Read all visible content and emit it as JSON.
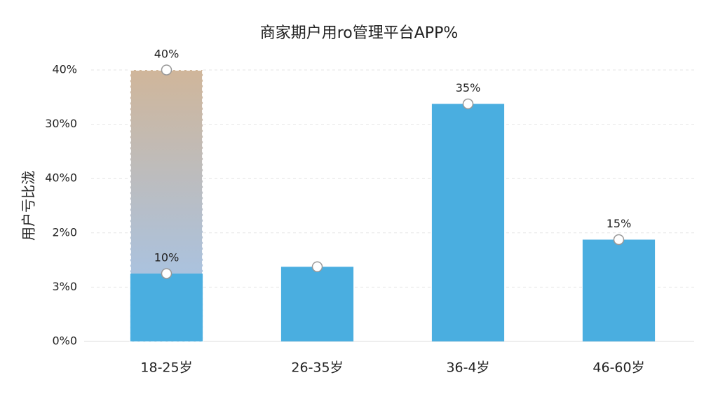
{
  "chart_data": {
    "type": "bar",
    "title": "商家期户用ro管理平台APP%",
    "y_label": "用户亏比泷",
    "categories": [
      "18-25岁",
      "26-35岁",
      "36-4岁",
      "46-60岁"
    ],
    "values": [
      10,
      11,
      35,
      15
    ],
    "value_labels": [
      "10%",
      null,
      "35%",
      "15%"
    ],
    "highlight_values": [
      40,
      null,
      null,
      null
    ],
    "highlight_labels": [
      "40%",
      null,
      null,
      null
    ],
    "color": "#4aaee0",
    "ylim": [
      0,
      40
    ],
    "yticks": [
      {
        "value": 0,
        "label": "0%0"
      },
      {
        "value": 8,
        "label": "3%0"
      },
      {
        "value": 16,
        "label": "2%0"
      },
      {
        "value": 24,
        "label": "40%0"
      },
      {
        "value": 32,
        "label": "30%0"
      },
      {
        "value": 40,
        "label": "40%"
      }
    ],
    "grid": true
  }
}
